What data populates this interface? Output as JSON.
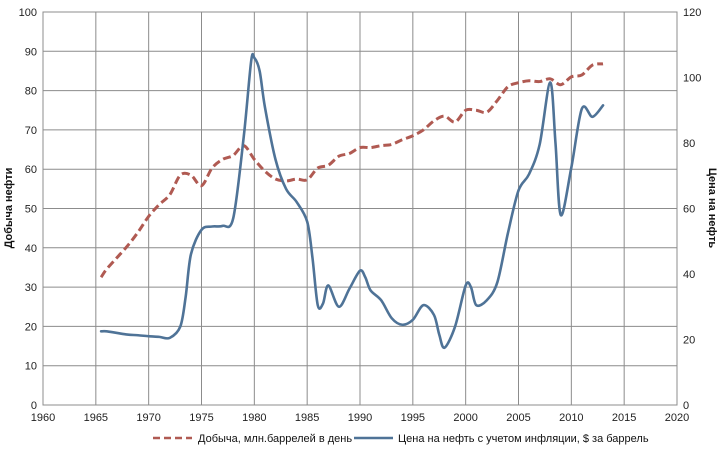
{
  "chart_data": {
    "type": "line",
    "xlabel": "",
    "ylabel": "Добыча нефти",
    "y2label": "Цена на нефть",
    "xlim": [
      1960,
      2020
    ],
    "ylim": [
      0,
      100
    ],
    "y2lim": [
      0,
      120
    ],
    "x_ticks": [
      "1960",
      "1965",
      "1970",
      "1975",
      "1980",
      "1985",
      "1990",
      "1995",
      "2000",
      "2005",
      "2010",
      "2015",
      "2020"
    ],
    "y_ticks": [
      "0",
      "10",
      "20",
      "30",
      "40",
      "50",
      "60",
      "70",
      "80",
      "90",
      "100"
    ],
    "y2_ticks": [
      "0",
      "20",
      "40",
      "60",
      "80",
      "100",
      "120"
    ],
    "grid": true,
    "legend_position": "bottom",
    "colors": {
      "production": "#b05a52",
      "price": "#4f7397"
    },
    "series": [
      {
        "name": "Добыча, млн.баррелей в день",
        "axis": "left",
        "style": "dashed",
        "x": [
          1965.5,
          1966,
          1967,
          1968,
          1969,
          1970,
          1971,
          1972,
          1973,
          1974,
          1975,
          1976,
          1977,
          1978,
          1979,
          1980,
          1981,
          1982,
          1983,
          1984,
          1985,
          1986,
          1987,
          1988,
          1989,
          1990,
          1991,
          1992,
          1993,
          1994,
          1995,
          1996,
          1997,
          1998,
          1999,
          2000,
          2001,
          2002,
          2003,
          2004,
          2005,
          2006,
          2007,
          2008,
          2009,
          2010,
          2011,
          2012,
          2013
        ],
        "values": [
          32.5,
          34.5,
          37.5,
          40.5,
          44,
          48,
          51,
          53.5,
          58.5,
          58.5,
          55.8,
          60.3,
          62.5,
          63.5,
          66,
          62.5,
          59.5,
          57.5,
          57,
          57.5,
          57.3,
          60.3,
          61,
          63.3,
          64,
          65.5,
          65.5,
          66,
          66.3,
          67.5,
          68.5,
          70,
          72.3,
          73.5,
          72,
          75,
          75,
          74.5,
          77.5,
          81,
          82,
          82.5,
          82.3,
          83,
          81.5,
          83.5,
          84,
          86.5,
          86.8
        ]
      },
      {
        "name": "Цена на нефть с учетом инфляции, $ за баррель",
        "axis": "right",
        "style": "solid",
        "x": [
          1965.5,
          1966,
          1967,
          1968,
          1969,
          1970,
          1971,
          1972,
          1973,
          1973.5,
          1974,
          1975,
          1976,
          1977,
          1978,
          1979,
          1979.7,
          1980,
          1980.5,
          1981,
          1982,
          1983,
          1984,
          1985,
          1985.5,
          1986,
          1986.5,
          1987,
          1988,
          1989,
          1990,
          1990.5,
          1991,
          1992,
          1993,
          1994,
          1995,
          1996,
          1997,
          1997.5,
          1998,
          1999,
          2000,
          2000.5,
          2001,
          2002,
          2003,
          2004,
          2005,
          2006,
          2007,
          2008,
          2008.5,
          2009,
          2010,
          2011,
          2012,
          2013
        ],
        "values": [
          22.5,
          22.5,
          22,
          21.5,
          21.3,
          21,
          20.8,
          20.5,
          24,
          33,
          46,
          53.5,
          54.5,
          54.7,
          57,
          82,
          105,
          106,
          102,
          91,
          75,
          66,
          62,
          56,
          45,
          30.5,
          31,
          36.5,
          30,
          35.5,
          41,
          39,
          35,
          32,
          26.5,
          24.5,
          26,
          30.5,
          27.5,
          21.5,
          17.5,
          24,
          36.5,
          36,
          30.5,
          32,
          37.5,
          52.5,
          65.5,
          70.5,
          79.5,
          98.5,
          80,
          58,
          72.5,
          90.5,
          88,
          91.5
        ]
      }
    ]
  }
}
